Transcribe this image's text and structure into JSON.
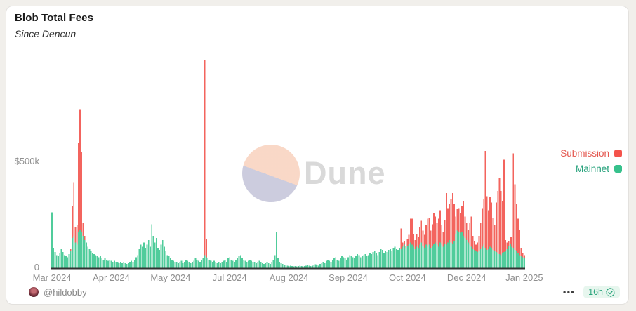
{
  "card": {
    "title": "Blob Total Fees",
    "subtitle": "Since Dencun"
  },
  "legend": {
    "items": [
      {
        "label": "Submission",
        "color": "#f4534b",
        "text_color": "#e4574f"
      },
      {
        "label": "Mainnet",
        "color": "#36c18c",
        "text_color": "#27a27c"
      }
    ]
  },
  "watermark": {
    "label": "Dune",
    "circle_top_color": "#f9d6c4",
    "circle_bottom_color": "#c9c9dc",
    "text_color": "#d9d9d9"
  },
  "footer": {
    "author": "@hildobby",
    "menu_icon": "•••",
    "updated": "16h",
    "updated_icon": "verified-check"
  },
  "chart_data": {
    "type": "bar",
    "stacked": true,
    "title": "Blob Total Fees",
    "subtitle": "Since Dencun",
    "unit": "USD (thousands)",
    "interval": "daily",
    "start_date": "2024-03-13",
    "end_date": "2025-01-10",
    "grid": "single horizontal gridline at $500k",
    "legend_position": "right",
    "ylim": [
      0,
      1000
    ],
    "gridline_value": 500,
    "y_tick_labels": [
      "$500k",
      "0"
    ],
    "x_ticks": [
      {
        "index": 0,
        "label": "Mar 2024"
      },
      {
        "index": 38,
        "label": "Apr 2024"
      },
      {
        "index": 76,
        "label": "May 2024"
      },
      {
        "index": 114,
        "label": "Jul 2024"
      },
      {
        "index": 152,
        "label": "Aug 2024"
      },
      {
        "index": 190,
        "label": "Sep 2024"
      },
      {
        "index": 228,
        "label": "Oct 2024"
      },
      {
        "index": 266,
        "label": "Dec 2024"
      },
      {
        "index": 303,
        "label": "Jan 2025"
      }
    ],
    "series": [
      {
        "name": "Mainnet",
        "color": "#50cc9b",
        "values": [
          260,
          95,
          75,
          60,
          55,
          70,
          90,
          75,
          60,
          55,
          50,
          65,
          80,
          140,
          150,
          120,
          110,
          170,
          180,
          170,
          150,
          130,
          120,
          100,
          90,
          80,
          70,
          65,
          60,
          55,
          50,
          55,
          45,
          40,
          45,
          40,
          35,
          40,
          35,
          30,
          35,
          30,
          30,
          25,
          30,
          25,
          30,
          25,
          20,
          25,
          30,
          35,
          30,
          40,
          50,
          60,
          90,
          110,
          100,
          120,
          95,
          110,
          130,
          100,
          205,
          150,
          120,
          140,
          95,
          85,
          110,
          130,
          100,
          80,
          60,
          55,
          45,
          40,
          35,
          30,
          30,
          25,
          30,
          35,
          25,
          30,
          40,
          35,
          30,
          25,
          30,
          35,
          45,
          40,
          35,
          30,
          40,
          45,
          60,
          50,
          45,
          40,
          35,
          30,
          35,
          30,
          25,
          30,
          25,
          30,
          35,
          40,
          30,
          45,
          50,
          40,
          35,
          30,
          40,
          45,
          55,
          60,
          45,
          40,
          35,
          30,
          35,
          40,
          35,
          30,
          30,
          25,
          30,
          35,
          30,
          25,
          20,
          25,
          30,
          25,
          20,
          30,
          40,
          60,
          170,
          45,
          30,
          25,
          20,
          15,
          15,
          12,
          10,
          12,
          10,
          8,
          10,
          8,
          10,
          12,
          10,
          8,
          10,
          12,
          15,
          12,
          10,
          12,
          15,
          18,
          15,
          12,
          20,
          25,
          30,
          25,
          35,
          40,
          35,
          30,
          40,
          45,
          50,
          40,
          35,
          45,
          55,
          50,
          45,
          40,
          50,
          60,
          55,
          50,
          45,
          55,
          65,
          60,
          50,
          55,
          60,
          65,
          55,
          60,
          70,
          65,
          75,
          80,
          70,
          60,
          75,
          90,
          85,
          70,
          80,
          75,
          85,
          90,
          80,
          95,
          100,
          90,
          85,
          95,
          90,
          100,
          110,
          95,
          105,
          115,
          120,
          110,
          100,
          90,
          100,
          95,
          110,
          120,
          105,
          95,
          110,
          100,
          110,
          95,
          105,
          115,
          120,
          110,
          100,
          120,
          110,
          100,
          115,
          110,
          120,
          130,
          120,
          115,
          125,
          160,
          175,
          170,
          165,
          170,
          150,
          140,
          130,
          120,
          110,
          100,
          90,
          85,
          80,
          75,
          80,
          90,
          100,
          110,
          95,
          85,
          90,
          100,
          95,
          85,
          80,
          75,
          70,
          65,
          60,
          70,
          75,
          80,
          90,
          105,
          115,
          100,
          95,
          85,
          80,
          70,
          60,
          55,
          50,
          45
        ]
      },
      {
        "name": "Submission",
        "color": "#f3645e",
        "values": [
          0,
          0,
          0,
          0,
          0,
          0,
          0,
          0,
          0,
          0,
          0,
          0,
          10,
          150,
          250,
          70,
          90,
          415,
          560,
          370,
          60,
          20,
          0,
          0,
          0,
          0,
          0,
          0,
          0,
          0,
          0,
          0,
          0,
          0,
          0,
          0,
          0,
          0,
          0,
          0,
          0,
          0,
          0,
          0,
          0,
          0,
          0,
          0,
          0,
          0,
          0,
          0,
          0,
          0,
          0,
          0,
          0,
          0,
          0,
          0,
          0,
          0,
          0,
          0,
          0,
          0,
          0,
          0,
          0,
          0,
          0,
          0,
          0,
          0,
          0,
          0,
          0,
          0,
          0,
          0,
          0,
          0,
          0,
          0,
          0,
          0,
          0,
          0,
          0,
          0,
          0,
          0,
          0,
          0,
          0,
          0,
          0,
          0,
          910,
          85,
          0,
          0,
          0,
          0,
          0,
          0,
          0,
          0,
          0,
          0,
          0,
          0,
          0,
          0,
          0,
          0,
          0,
          0,
          0,
          0,
          0,
          0,
          0,
          0,
          0,
          0,
          0,
          0,
          0,
          0,
          0,
          0,
          0,
          0,
          0,
          0,
          0,
          0,
          0,
          0,
          0,
          0,
          0,
          0,
          0,
          0,
          0,
          0,
          0,
          0,
          0,
          0,
          0,
          0,
          0,
          0,
          0,
          0,
          0,
          0,
          0,
          0,
          0,
          0,
          0,
          0,
          0,
          0,
          0,
          0,
          0,
          0,
          0,
          0,
          0,
          0,
          0,
          0,
          0,
          0,
          0,
          0,
          0,
          0,
          0,
          0,
          0,
          0,
          0,
          0,
          0,
          0,
          0,
          0,
          0,
          0,
          0,
          0,
          0,
          0,
          0,
          0,
          0,
          0,
          0,
          0,
          0,
          0,
          0,
          0,
          0,
          0,
          0,
          0,
          0,
          0,
          0,
          0,
          0,
          0,
          0,
          0,
          0,
          0,
          95,
          20,
          15,
          10,
          30,
          40,
          110,
          120,
          60,
          40,
          60,
          50,
          80,
          100,
          70,
          60,
          90,
          130,
          125,
          80,
          100,
          140,
          120,
          100,
          130,
          150,
          90,
          70,
          110,
          240,
          160,
          170,
          200,
          235,
          175,
          80,
          100,
          110,
          90,
          120,
          160,
          100,
          80,
          60,
          100,
          140,
          60,
          40,
          30,
          45,
          70,
          120,
          180,
          210,
          450,
          250,
          180,
          230,
          210,
          150,
          120,
          230,
          290,
          355,
          300,
          240,
          430,
          50,
          30,
          20,
          30,
          45,
          440,
          305,
          220,
          160,
          120,
          40,
          20,
          15
        ]
      }
    ]
  }
}
